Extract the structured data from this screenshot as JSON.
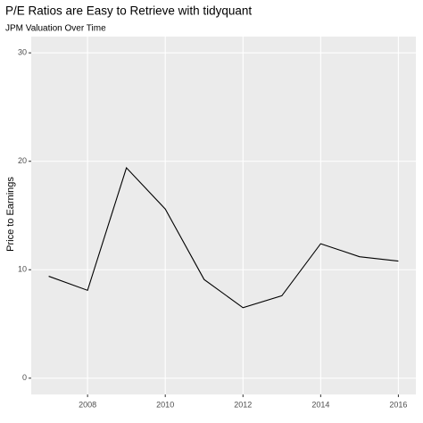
{
  "chart_data": {
    "type": "line",
    "title": "P/E Ratios are Easy to Retrieve with tidyquant",
    "subtitle": "JPM Valuation Over Time",
    "y_label": "Price to Earnings",
    "x": [
      2007,
      2008,
      2009,
      2010,
      2011,
      2012,
      2013,
      2014,
      2015,
      2016
    ],
    "series": [
      {
        "color": "#000000",
        "values": [
          9.4,
          8.1,
          19.4,
          15.6,
          9.1,
          6.5,
          7.6,
          12.4,
          11.2,
          10.8
        ]
      }
    ],
    "xlim": [
      2006.55,
      2016.45
    ],
    "xticks": [
      2008,
      2010,
      2012,
      2014,
      2016
    ],
    "ylim": [
      -1.5,
      31.5
    ],
    "yticks": [
      0,
      10,
      20,
      30
    ],
    "grid": true
  }
}
